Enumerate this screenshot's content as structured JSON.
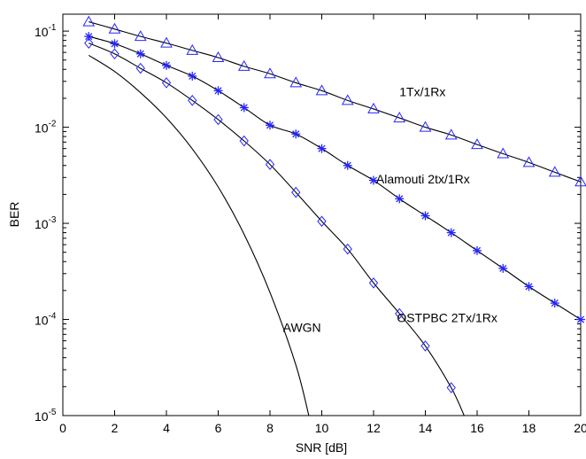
{
  "chart_data": {
    "type": "line",
    "xlabel": "SNR [dB]",
    "ylabel": "BER",
    "xlim": [
      0,
      20
    ],
    "ylim": [
      1e-05,
      0.15
    ],
    "y_scale": "log",
    "grid": false,
    "x_ticks": [
      "0",
      "2",
      "4",
      "6",
      "8",
      "10",
      "12",
      "14",
      "16",
      "18",
      "20"
    ],
    "y_ticks": [
      {
        "base": "10",
        "exp": "-1",
        "value": 0.1
      },
      {
        "base": "10",
        "exp": "-2",
        "value": 0.01
      },
      {
        "base": "10",
        "exp": "-3",
        "value": 0.001
      },
      {
        "base": "10",
        "exp": "-4",
        "value": 0.0001
      },
      {
        "base": "10",
        "exp": "-5",
        "value": 1e-05
      }
    ],
    "series": [
      {
        "name": "1Tx/1Rx",
        "marker": "triangle",
        "x": [
          1,
          2,
          3,
          4,
          5,
          6,
          7,
          8,
          9,
          10,
          11,
          12,
          13,
          14,
          15,
          16,
          17,
          18,
          19,
          20
        ],
        "y": [
          0.125,
          0.105,
          0.088,
          0.075,
          0.063,
          0.053,
          0.043,
          0.036,
          0.029,
          0.024,
          0.019,
          0.0155,
          0.0125,
          0.01,
          0.0083,
          0.0066,
          0.0053,
          0.0043,
          0.0034,
          0.0027
        ]
      },
      {
        "name": "Alamouti 2tx/1Rx",
        "marker": "star",
        "x": [
          1,
          2,
          3,
          4,
          5,
          6,
          7,
          8,
          9,
          10,
          11,
          12,
          13,
          14,
          15,
          16,
          17,
          18,
          19,
          20
        ],
        "y": [
          0.088,
          0.074,
          0.058,
          0.044,
          0.034,
          0.024,
          0.016,
          0.0105,
          0.0085,
          0.006,
          0.004,
          0.0028,
          0.0018,
          0.0012,
          0.0008,
          0.00052,
          0.00034,
          0.00022,
          0.000148,
          0.0001
        ]
      },
      {
        "name": "OSTPBC 2Tx/1Rx",
        "marker": "diamond",
        "x": [
          1,
          2,
          3,
          4,
          5,
          6,
          7,
          8,
          9,
          10,
          11,
          12,
          13,
          14,
          15
        ],
        "y": [
          0.075,
          0.058,
          0.041,
          0.029,
          0.019,
          0.012,
          0.0072,
          0.0041,
          0.0021,
          0.00105,
          0.00054,
          0.00024,
          0.000115,
          5.3e-05,
          1.95e-05
        ],
        "x_end": 15.5,
        "y_end": 1e-05
      },
      {
        "name": "AWGN",
        "marker": "none",
        "x": [
          1,
          2,
          3,
          4,
          5,
          6,
          7,
          8,
          9,
          9.5
        ],
        "y": [
          0.056,
          0.038,
          0.0229,
          0.0125,
          0.00595,
          0.00239,
          0.00077,
          0.000191,
          3.36e-05,
          1e-05
        ]
      }
    ],
    "annotations": [
      {
        "text": "1Tx/1Rx",
        "x": 13,
        "y": 0.021
      },
      {
        "text": "Alamouti 2tx/1Rx",
        "x": 12.1,
        "y": 0.0026
      },
      {
        "text": "OSTPBC 2Tx/1Rx",
        "x": 12.9,
        "y": 9.4e-05
      },
      {
        "text": "AWGN",
        "x": 8.5,
        "y": 7.4e-05
      }
    ]
  }
}
